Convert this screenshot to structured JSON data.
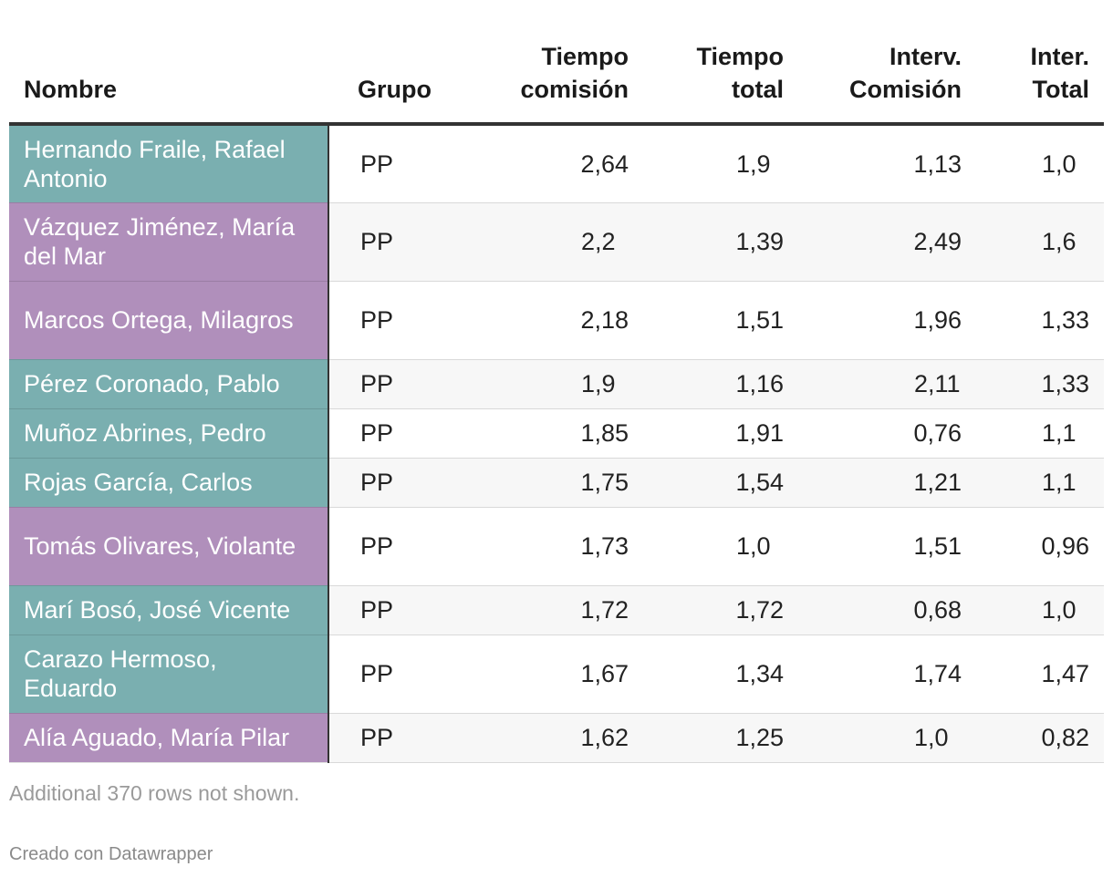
{
  "colors": {
    "teal": "#7aafb0",
    "purple": "#b08fbb"
  },
  "table": {
    "headers": {
      "nombre": "Nombre",
      "grupo": "Grupo",
      "tiempo_comision_1": "Tiempo",
      "tiempo_comision_2": "comisión",
      "tiempo_total_1": "Tiempo",
      "tiempo_total_2": "total",
      "interv_comision_1": "Interv.",
      "interv_comision_2": "Comisión",
      "inter_total_1": "Inter.",
      "inter_total_2": "Total"
    },
    "rows": [
      {
        "nombre": "Hernando Fraile, Rafael Antonio",
        "color": "teal",
        "grupo": "PP",
        "tiempo_comision": "2,64",
        "tiempo_total": "1,9",
        "interv_comision": "1,13",
        "inter_total": "1,0"
      },
      {
        "nombre": "Vázquez Jiménez, María del Mar",
        "color": "purple",
        "grupo": "PP",
        "tiempo_comision": "2,2",
        "tiempo_total": "1,39",
        "interv_comision": "2,49",
        "inter_total": "1,6"
      },
      {
        "nombre": "Marcos Ortega, Milagros",
        "color": "purple",
        "grupo": "PP",
        "tiempo_comision": "2,18",
        "tiempo_total": "1,51",
        "interv_comision": "1,96",
        "inter_total": "1,33"
      },
      {
        "nombre": "Pérez Coronado, Pablo",
        "color": "teal",
        "grupo": "PP",
        "tiempo_comision": "1,9",
        "tiempo_total": "1,16",
        "interv_comision": "2,11",
        "inter_total": "1,33"
      },
      {
        "nombre": "Muñoz Abrines, Pedro",
        "color": "teal",
        "grupo": "PP",
        "tiempo_comision": "1,85",
        "tiempo_total": "1,91",
        "interv_comision": "0,76",
        "inter_total": "1,1"
      },
      {
        "nombre": "Rojas García, Carlos",
        "color": "teal",
        "grupo": "PP",
        "tiempo_comision": "1,75",
        "tiempo_total": "1,54",
        "interv_comision": "1,21",
        "inter_total": "1,1"
      },
      {
        "nombre": "Tomás Olivares, Violante",
        "color": "purple",
        "grupo": "PP",
        "tiempo_comision": "1,73",
        "tiempo_total": "1,0",
        "interv_comision": "1,51",
        "inter_total": "0,96"
      },
      {
        "nombre": "Marí Bosó, José Vicente",
        "color": "teal",
        "grupo": "PP",
        "tiempo_comision": "1,72",
        "tiempo_total": "1,72",
        "interv_comision": "0,68",
        "inter_total": "1,0"
      },
      {
        "nombre": "Carazo Hermoso, Eduardo",
        "color": "teal",
        "grupo": "PP",
        "tiempo_comision": "1,67",
        "tiempo_total": "1,34",
        "interv_comision": "1,74",
        "inter_total": "1,47"
      },
      {
        "nombre": "Alía Aguado, María Pilar",
        "color": "purple",
        "grupo": "PP",
        "tiempo_comision": "1,62",
        "tiempo_total": "1,25",
        "interv_comision": "1,0",
        "inter_total": "0,82"
      }
    ]
  },
  "footer": {
    "note": "Additional 370 rows not shown.",
    "credit": "Creado con Datawrapper"
  }
}
